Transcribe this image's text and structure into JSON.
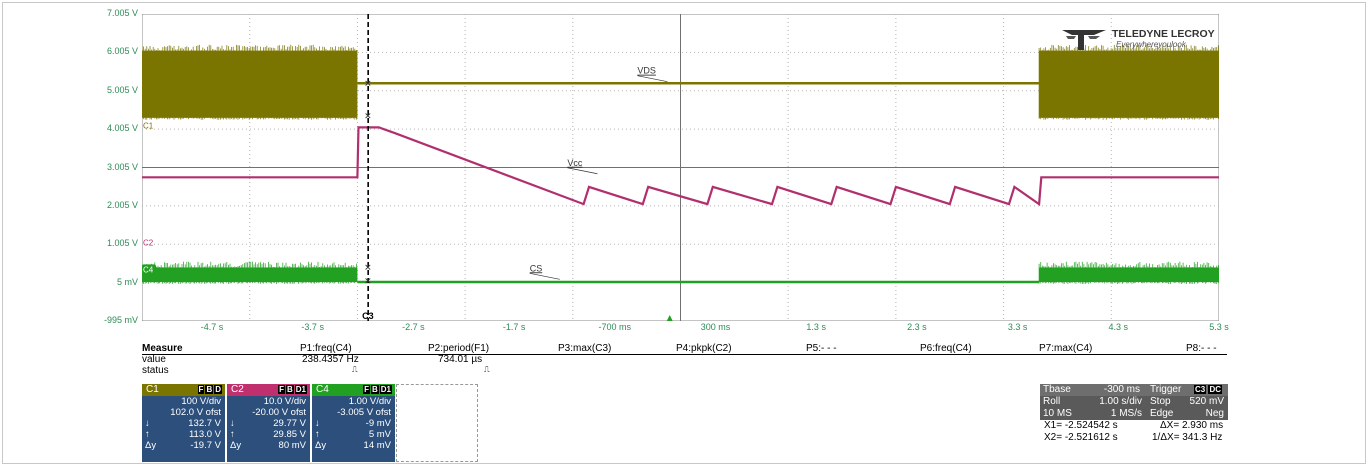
{
  "chart_data": {
    "type": "line",
    "y_tick_labels": [
      "7.005 V",
      "6.005 V",
      "5.005 V",
      "4.005 V",
      "3.005 V",
      "2.005 V",
      "1.005 V",
      "5 mV",
      "-995 mV"
    ],
    "x_tick_labels": [
      "-4.7 s",
      "-3.7 s",
      "-2.7 s",
      "-1.7 s",
      "-700 ms",
      "300 ms",
      "1.3 s",
      "2.3 s",
      "3.3 s",
      "4.3 s",
      "5.3 s"
    ],
    "xlim": [
      -4.7,
      5.3
    ],
    "ylim": [
      -0.995,
      7.005
    ],
    "grid": true,
    "series": [
      {
        "name": "VDS",
        "color": "#7a7400",
        "baseline": 5.2,
        "band": [
          4.3,
          6.05
        ],
        "band_ranges": [
          [
            -4.7,
            -2.7
          ],
          [
            3.63,
            5.3
          ]
        ],
        "flat_ranges": [
          [
            -2.7,
            3.63
          ]
        ]
      },
      {
        "name": "Vcc",
        "color": "#b0306e",
        "x": [
          -4.7,
          -2.7,
          -2.69,
          -2.5,
          -2.35,
          -0.6,
          -0.55,
          -0.05,
          0.0,
          0.55,
          0.6,
          1.15,
          1.2,
          1.7,
          1.75,
          2.25,
          2.3,
          2.8,
          2.85,
          3.35,
          3.4,
          3.63,
          3.65,
          5.3
        ],
        "y": [
          2.75,
          2.75,
          4.05,
          4.05,
          3.9,
          2.05,
          2.5,
          2.05,
          2.5,
          2.05,
          2.5,
          2.05,
          2.5,
          2.05,
          2.5,
          2.05,
          2.5,
          2.05,
          2.5,
          2.05,
          2.5,
          2.05,
          2.75,
          2.75
        ]
      },
      {
        "name": "CS",
        "color": "#22a022",
        "baseline": 0.02,
        "band": [
          0.02,
          0.4
        ],
        "band_ranges": [
          [
            -4.7,
            -2.7
          ],
          [
            3.63,
            5.3
          ]
        ],
        "flat_ranges": [
          [
            -2.7,
            3.63
          ]
        ]
      }
    ],
    "channel_markers": [
      "C1",
      "C2",
      "C4"
    ],
    "cursor_label": "C3",
    "trigger_x": -2.6
  },
  "logo": {
    "brand": "TELEDYNE LECROY",
    "tagline": "Everywhereyoulook"
  },
  "measure": {
    "header_label": "Measure",
    "headers": [
      "P1:freq(C4)",
      "P2:period(F1)",
      "P3:max(C3)",
      "P4:pkpk(C2)",
      "P5:- - -",
      "P6:freq(C4)",
      "P7:max(C4)",
      "P8:- - -"
    ],
    "row_value_label": "value",
    "values": [
      "238.4357 Hz",
      "734.01 µs"
    ],
    "row_status_label": "status"
  },
  "channels": [
    {
      "name": "C1",
      "color": "#7a7400",
      "vdiv": "100 V/div",
      "ofst": "102.0 V ofst",
      "down": "132.7 V",
      "up": "113.0 V",
      "dy": "-19.7 V"
    },
    {
      "name": "C2",
      "color": "#c0306e",
      "vdiv": "10.0 V/div",
      "ofst": "-20.00 V ofst",
      "down": "29.77 V",
      "up": "29.85 V",
      "dy": "80 mV"
    },
    {
      "name": "C4",
      "color": "#22a022",
      "vdiv": "1.00 V/div",
      "ofst": "-3.005 V ofst",
      "down": "-9 mV",
      "up": "5 mV",
      "dy": "14 mV"
    }
  ],
  "channel_tags": [
    "F",
    "B",
    "D"
  ],
  "channel_tags_alt": [
    "F",
    "B",
    "D1"
  ],
  "timebase": {
    "tbase_label": "Tbase",
    "tbase_value": "-300 ms",
    "trigger_label": "Trigger",
    "trig_tags": [
      "C3",
      "DC"
    ],
    "roll": "Roll",
    "sdiv": "1.00 s/div",
    "stop": "Stop",
    "level": "520 mV",
    "ms": "10 MS",
    "rate": "1 MS/s",
    "edge": "Edge",
    "neg": "Neg",
    "x1": "X1= -2.524542 s",
    "dx": "ΔX= 2.930 ms",
    "x2": "X2= -2.521612 s",
    "inv": "1/ΔX= 341.3 Hz"
  }
}
